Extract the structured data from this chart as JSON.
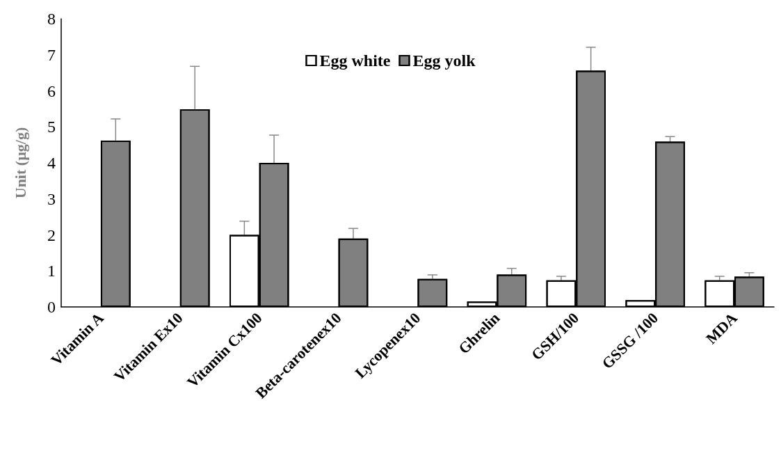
{
  "chart_data": {
    "type": "bar",
    "ylabel": "Unit (µg/g)",
    "categories": [
      "Vitamin A",
      "Vitamin Ex10",
      "Vitamin Cx100",
      "Beta-carotenex10",
      "Lycopenex10",
      "Ghrelin",
      "GSH/100",
      "GSSG /100",
      "MDA"
    ],
    "series": [
      {
        "name": "Egg white",
        "color": "#ffffff",
        "values": [
          null,
          null,
          2.0,
          null,
          null,
          0.15,
          0.74,
          0.19,
          0.74
        ],
        "errors": [
          null,
          null,
          [
            2.0,
            2.38
          ],
          null,
          null,
          null,
          [
            0.74,
            0.85
          ],
          null,
          [
            0.74,
            0.85
          ]
        ]
      },
      {
        "name": "Egg yolk",
        "color": "#808080",
        "values": [
          4.62,
          5.49,
          4.0,
          1.9,
          0.78,
          0.9,
          6.56,
          4.59,
          0.84
        ],
        "errors": [
          [
            4.62,
            5.22
          ],
          [
            5.49,
            6.68
          ],
          [
            4.0,
            4.77
          ],
          [
            1.9,
            2.18
          ],
          [
            0.78,
            0.89
          ],
          [
            0.9,
            1.07
          ],
          [
            6.56,
            7.21
          ],
          [
            4.59,
            4.73
          ],
          [
            0.84,
            0.95
          ]
        ]
      }
    ],
    "ylim": [
      0,
      8
    ],
    "yticks": [
      0,
      1,
      2,
      3,
      4,
      5,
      6,
      7,
      8
    ],
    "grid": false,
    "legend": "top"
  }
}
